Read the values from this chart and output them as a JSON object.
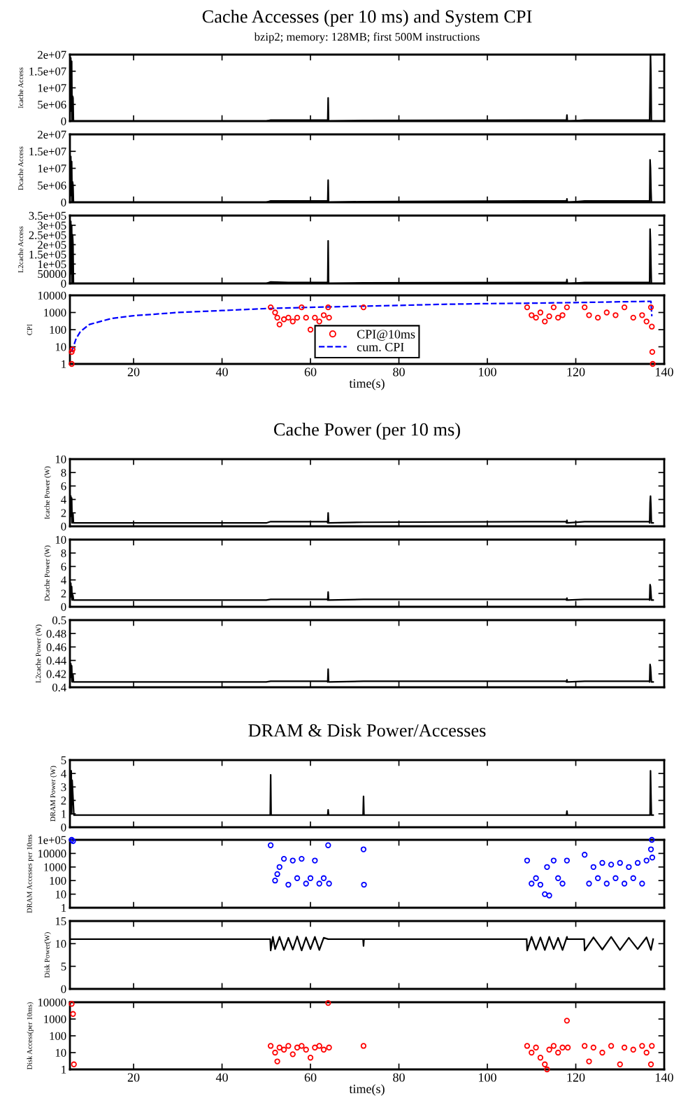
{
  "chart_data": [
    {
      "type": "line",
      "title": "Cache Accesses (per 10 ms) and System CPI",
      "subtitle": "bzip2; memory: 128MB; first 500M instructions",
      "ylabel": "Icache Access",
      "xlim": [
        5.6,
        140
      ],
      "xticks": [
        20,
        40,
        60,
        80,
        100,
        120,
        140
      ],
      "ylim": [
        0,
        20000000
      ],
      "yticks": [
        {
          "value": 0,
          "label": "0"
        },
        {
          "value": 5000000,
          "label": "5e+06"
        },
        {
          "value": 10000000,
          "label": "1e+07"
        },
        {
          "value": 15000000,
          "label": "1.5e+07"
        },
        {
          "value": 20000000,
          "label": "2e+07"
        }
      ],
      "tick_labels": "y",
      "series": [
        {
          "color": "#000000",
          "x": [
            5.6,
            5.8,
            5.9,
            6.0,
            6.1,
            6.2,
            6.3,
            6.4,
            6.5,
            6.6,
            50,
            51,
            55,
            60,
            63.8,
            63.9,
            64,
            64.1,
            64.2,
            72,
            109,
            113,
            117.8,
            117.9,
            118,
            118.1,
            118.2,
            122,
            127,
            132,
            136.6,
            136.7,
            136.8,
            136.9,
            137,
            137.1,
            137.2,
            137.5
          ],
          "values": [
            0,
            19000000,
            3000000,
            18000000,
            0,
            7500000,
            7000000,
            0,
            0,
            0,
            0,
            300000,
            300000,
            300000,
            300000,
            0,
            7000000,
            0,
            0,
            200000,
            300000,
            300000,
            300000,
            0,
            1800000,
            0,
            0,
            300000,
            300000,
            300000,
            300000,
            0,
            10000000,
            20000000,
            14000000,
            0,
            0,
            0
          ]
        }
      ]
    },
    {
      "type": "line",
      "ylabel": "Dcache Access",
      "xlim": [
        5.6,
        140
      ],
      "xticks": [
        20,
        40,
        60,
        80,
        100,
        120,
        140
      ],
      "ylim": [
        0,
        20000000
      ],
      "yticks": [
        {
          "value": 0,
          "label": "0"
        },
        {
          "value": 5000000,
          "label": "5e+06"
        },
        {
          "value": 10000000,
          "label": "1e+07"
        },
        {
          "value": 15000000,
          "label": "1.5e+07"
        },
        {
          "value": 20000000,
          "label": "2e+07"
        }
      ],
      "tick_labels": "y",
      "series": [
        {
          "color": "#000000",
          "x": [
            5.6,
            5.8,
            5.9,
            6.0,
            6.1,
            6.2,
            6.3,
            6.4,
            6.5,
            6.6,
            50,
            51,
            55,
            60,
            63.8,
            63.9,
            64,
            64.1,
            64.2,
            72,
            109,
            113,
            117.8,
            117.9,
            118,
            118.1,
            118.2,
            122,
            127,
            132,
            136.6,
            136.7,
            136.8,
            136.9,
            137,
            137.1,
            137.2,
            137.5
          ],
          "values": [
            0,
            13500000,
            2000000,
            12000000,
            0,
            6000000,
            5000000,
            0,
            0,
            0,
            0,
            400000,
            400000,
            400000,
            400000,
            0,
            6500000,
            0,
            0,
            200000,
            400000,
            400000,
            400000,
            0,
            1000000,
            0,
            0,
            400000,
            400000,
            400000,
            400000,
            0,
            12500000,
            10000000,
            4000000,
            0,
            0,
            0
          ]
        }
      ]
    },
    {
      "type": "line",
      "ylabel": "L2cache Access",
      "xlim": [
        5.6,
        140
      ],
      "xticks": [
        20,
        40,
        60,
        80,
        100,
        120,
        140
      ],
      "ylim": [
        0,
        350000
      ],
      "yticks": [
        {
          "value": 0,
          "label": "0"
        },
        50000,
        {
          "value": 100000,
          "label": "1e+05"
        },
        {
          "value": 150000,
          "label": "1.5e+05"
        },
        {
          "value": 200000,
          "label": "2e+05"
        },
        {
          "value": 250000,
          "label": "2.5e+05"
        },
        {
          "value": 300000,
          "label": "3e+05"
        },
        {
          "value": 350000,
          "label": "3.5e+05"
        }
      ],
      "tick_labels": "y",
      "series": [
        {
          "color": "#000000",
          "x": [
            5.6,
            5.8,
            5.9,
            6.0,
            6.1,
            6.2,
            6.3,
            6.4,
            6.5,
            6.6,
            50,
            51,
            55,
            60,
            63.8,
            63.9,
            64,
            64.1,
            64.2,
            72,
            109,
            113,
            117.8,
            117.9,
            118,
            118.1,
            118.2,
            122,
            127,
            132,
            136.6,
            136.7,
            136.8,
            136.9,
            137,
            137.1,
            137.2,
            137.5
          ],
          "values": [
            0,
            320000,
            50000,
            300000,
            0,
            250000,
            200000,
            0,
            0,
            0,
            0,
            8000,
            5000,
            5000,
            5000,
            0,
            220000,
            0,
            0,
            3000,
            5000,
            5000,
            5000,
            0,
            20000,
            0,
            0,
            5000,
            5000,
            5000,
            5000,
            0,
            280000,
            220000,
            100000,
            0,
            0,
            0
          ]
        }
      ]
    },
    {
      "type": "scatter",
      "ylabel": "CPI",
      "xlabel": "time(s)",
      "log": "y",
      "legend": "lower center",
      "xlim": [
        5.6,
        140
      ],
      "xticks": [
        20,
        40,
        60,
        80,
        100,
        120,
        140
      ],
      "ylim": [
        1,
        10000
      ],
      "yticks": [
        1,
        10,
        100,
        1000,
        10000
      ],
      "series": [
        {
          "type": "scatter",
          "name": "CPI@10ms",
          "marker": "circle",
          "color": "#ff0000",
          "x": [
            6,
            6,
            6.2,
            51,
            52,
            52.5,
            53,
            54,
            55,
            56,
            57,
            58,
            59,
            60,
            61,
            62,
            63,
            64,
            64.2,
            72,
            109,
            110,
            111,
            112,
            113,
            114,
            115,
            116,
            117,
            118,
            122,
            123,
            125,
            127,
            129,
            131,
            133,
            135,
            136,
            137,
            137.2,
            137.3,
            137.4
          ],
          "values": [
            1,
            5,
            7,
            2000,
            1000,
            500,
            200,
            400,
            500,
            300,
            500,
            2000,
            500,
            100,
            500,
            300,
            700,
            2000,
            500,
            2000,
            2000,
            700,
            500,
            1000,
            300,
            600,
            2000,
            500,
            700,
            2000,
            2000,
            700,
            500,
            1000,
            700,
            2000,
            500,
            700,
            300,
            2000,
            150,
            5,
            1
          ]
        },
        {
          "type": "line",
          "name": "cum. CPI",
          "marker": "none",
          "color": "#0000ff",
          "line_style": "dashed",
          "x": [
            6,
            7,
            8,
            10,
            15,
            20,
            30,
            40,
            50,
            60,
            70,
            80,
            90,
            100,
            110,
            120,
            130,
            137,
            137.2
          ],
          "values": [
            5,
            30,
            80,
            200,
            450,
            650,
            1000,
            1300,
            1700,
            2000,
            2300,
            2600,
            3000,
            3300,
            3500,
            3800,
            4200,
            4500,
            600
          ]
        }
      ]
    },
    {
      "type": "line",
      "title": "Cache Power (per 10 ms)",
      "ylabel": "Icache Power (W)",
      "xlim": [
        5.6,
        140
      ],
      "xticks": [
        20,
        40,
        60,
        80,
        100,
        120,
        140
      ],
      "ylim": [
        0,
        10
      ],
      "yticks": [
        0,
        2,
        4,
        6,
        8,
        10
      ],
      "tick_labels": "y",
      "series": [
        {
          "color": "#000000",
          "x": [
            5.6,
            5.8,
            5.9,
            6.0,
            6.1,
            6.2,
            6.3,
            6.4,
            6.5,
            6.6,
            50,
            51,
            55,
            60,
            63.8,
            63.9,
            64,
            64.1,
            64.2,
            72,
            109,
            113,
            117.8,
            117.9,
            118,
            118.1,
            118.2,
            122,
            127,
            132,
            136.6,
            136.7,
            136.8,
            136.9,
            137,
            137.1,
            137.2,
            137.5
          ],
          "values": [
            0.5,
            4.5,
            1.5,
            4.2,
            0.5,
            2,
            1.8,
            0.5,
            0.5,
            0.5,
            0.5,
            0.7,
            0.7,
            0.7,
            0.7,
            0.5,
            2,
            0.5,
            0.5,
            0.6,
            0.7,
            0.7,
            0.7,
            0.5,
            0.9,
            0.5,
            0.5,
            0.7,
            0.7,
            0.7,
            0.7,
            0.5,
            3.5,
            4.5,
            3,
            0.5,
            0.5,
            0.5
          ]
        }
      ]
    },
    {
      "type": "line",
      "ylabel": "Dcache Power (W)",
      "xlim": [
        5.6,
        140
      ],
      "xticks": [
        20,
        40,
        60,
        80,
        100,
        120,
        140
      ],
      "ylim": [
        0,
        10
      ],
      "yticks": [
        0,
        2,
        4,
        6,
        8,
        10
      ],
      "tick_labels": "y",
      "series": [
        {
          "color": "#000000",
          "x": [
            5.6,
            5.8,
            5.9,
            6.0,
            6.1,
            6.2,
            6.3,
            6.4,
            6.5,
            6.6,
            50,
            51,
            55,
            60,
            63.8,
            63.9,
            64,
            64.1,
            64.2,
            72,
            109,
            113,
            117.8,
            117.9,
            118,
            118.1,
            118.2,
            122,
            127,
            132,
            136.6,
            136.7,
            136.8,
            136.9,
            137,
            137.1,
            137.2,
            137.5
          ],
          "values": [
            1,
            3.5,
            1.5,
            3,
            1,
            1.8,
            1.6,
            1,
            1,
            1,
            1,
            1.1,
            1.1,
            1.1,
            1.1,
            1,
            2.2,
            1,
            1,
            1.1,
            1.1,
            1.1,
            1.1,
            1,
            1.3,
            1,
            1,
            1.1,
            1.1,
            1.1,
            1.1,
            1,
            3.3,
            3,
            2,
            1,
            1,
            1
          ]
        }
      ]
    },
    {
      "type": "line",
      "ylabel": "L2cache Power (W)",
      "xlim": [
        5.6,
        140
      ],
      "xticks": [
        20,
        40,
        60,
        80,
        100,
        120,
        140
      ],
      "ylim": [
        0.4,
        0.5
      ],
      "yticks": [
        0.4,
        0.42,
        0.44,
        0.46,
        0.48,
        0.5
      ],
      "tick_labels": "y",
      "series": [
        {
          "color": "#000000",
          "x": [
            5.6,
            5.8,
            5.9,
            6.0,
            6.1,
            6.2,
            6.3,
            6.4,
            6.5,
            6.6,
            50,
            51,
            55,
            60,
            63.8,
            63.9,
            64,
            64.1,
            64.2,
            72,
            109,
            113,
            117.8,
            117.9,
            118,
            118.1,
            118.2,
            122,
            127,
            132,
            136.6,
            136.7,
            136.8,
            136.9,
            137,
            137.1,
            137.2,
            137.5
          ],
          "values": [
            0.408,
            0.435,
            0.415,
            0.432,
            0.408,
            0.42,
            0.418,
            0.408,
            0.408,
            0.408,
            0.408,
            0.409,
            0.409,
            0.409,
            0.409,
            0.408,
            0.427,
            0.408,
            0.408,
            0.409,
            0.409,
            0.409,
            0.409,
            0.408,
            0.411,
            0.408,
            0.408,
            0.409,
            0.409,
            0.409,
            0.409,
            0.408,
            0.434,
            0.43,
            0.42,
            0.408,
            0.408,
            0.408
          ]
        }
      ]
    },
    {
      "type": "line",
      "title": "DRAM & Disk Power/Accesses",
      "ylabel": "DRAM Power (W)",
      "xlim": [
        5.6,
        140
      ],
      "xticks": [
        20,
        40,
        60,
        80,
        100,
        120,
        140
      ],
      "ylim": [
        0,
        5
      ],
      "yticks": [
        0,
        1,
        2,
        3,
        4,
        5
      ],
      "tick_labels": "y",
      "series": [
        {
          "color": "#000000",
          "x": [
            5.6,
            5.9,
            6.0,
            6.1,
            6.5,
            50.9,
            51,
            51.1,
            60,
            63.9,
            64,
            64.1,
            71.9,
            72,
            72.1,
            117.9,
            118,
            118.1,
            136.8,
            136.9,
            137,
            137.1,
            137.5
          ],
          "values": [
            0.9,
            4.2,
            1,
            3.5,
            0.9,
            0.9,
            3.9,
            0.9,
            0.9,
            0.9,
            1.3,
            0.9,
            0.9,
            2.3,
            0.9,
            0.9,
            1.2,
            0.9,
            0.9,
            4.2,
            2.5,
            0.9,
            0.9
          ]
        }
      ]
    },
    {
      "type": "scatter",
      "ylabel": "DRAM Accesses per 10ms",
      "log": "y",
      "marker": "circle",
      "xlim": [
        5.6,
        140
      ],
      "xticks": [
        20,
        40,
        60,
        80,
        100,
        120,
        140
      ],
      "ylim": [
        1,
        100000
      ],
      "yticks": [
        1,
        10,
        100,
        1000,
        10000,
        {
          "value": 100000,
          "label": "1e+05"
        }
      ],
      "tick_labels": "y",
      "series": [
        {
          "color": "#0000ff",
          "x": [
            6,
            6.3,
            51,
            52,
            52.5,
            53,
            54,
            55,
            56,
            57,
            58,
            59,
            60,
            61,
            62,
            63,
            64,
            64.2,
            72,
            72.1,
            109,
            110,
            111,
            112,
            113,
            113.5,
            114,
            115,
            116,
            117,
            118,
            122,
            123,
            124,
            125,
            126,
            127,
            128,
            129,
            130,
            131,
            132,
            133,
            134,
            135,
            136,
            137,
            137.2,
            137.3
          ],
          "values": [
            100000,
            80000,
            40000,
            100,
            300,
            1000,
            4000,
            50,
            3000,
            150,
            4000,
            60,
            150,
            3000,
            60,
            150,
            40000,
            60,
            20000,
            50,
            3000,
            60,
            150,
            50,
            10,
            1000,
            8,
            3000,
            150,
            60,
            3000,
            8000,
            60,
            1000,
            150,
            2000,
            60,
            1500,
            150,
            2000,
            60,
            1000,
            150,
            2000,
            60,
            3000,
            20000,
            100000,
            5000
          ]
        }
      ]
    },
    {
      "type": "line",
      "ylabel": "Disk Power(W)",
      "xlim": [
        5.6,
        140
      ],
      "xticks": [
        20,
        40,
        60,
        80,
        100,
        120,
        140
      ],
      "ylim": [
        0,
        15
      ],
      "yticks": [
        0,
        5,
        10,
        15
      ],
      "tick_labels": "y",
      "series": [
        {
          "color": "#000000",
          "x": [
            5.6,
            50.9,
            51,
            51.5,
            52,
            53,
            54,
            55,
            56,
            57,
            58,
            59,
            60,
            61,
            62,
            63,
            64,
            64.1,
            71.9,
            72,
            72.1,
            108.9,
            109,
            110,
            111,
            112,
            113,
            114,
            115,
            116,
            117,
            118,
            118.1,
            121.9,
            122,
            124,
            126,
            128,
            130,
            132,
            134,
            136,
            137,
            137.5
          ],
          "values": [
            11,
            11,
            8.5,
            11.5,
            8.8,
            11.5,
            8.6,
            11.3,
            8.7,
            11.6,
            8.5,
            11.4,
            8.8,
            11.5,
            8.6,
            11.3,
            11,
            11,
            11,
            9.5,
            11,
            11,
            8.5,
            11.5,
            8.7,
            11.4,
            8.6,
            11.5,
            8.8,
            11.3,
            8.6,
            11.5,
            11,
            11,
            8.5,
            11.4,
            8.7,
            11.5,
            8.6,
            11.3,
            8.8,
            11.4,
            8.6,
            11
          ]
        }
      ]
    },
    {
      "type": "scatter",
      "ylabel": "Disk Access(per 10ms)",
      "xlabel": "time(s)",
      "log": "y",
      "marker": "circle",
      "xlim": [
        5.6,
        140
      ],
      "xticks": [
        20,
        40,
        60,
        80,
        100,
        120,
        140
      ],
      "ylim": [
        1,
        10000
      ],
      "yticks": [
        1,
        10,
        100,
        1000,
        10000
      ],
      "series": [
        {
          "color": "#ff0000",
          "x": [
            6,
            6.3,
            6.5,
            51,
            52,
            52.5,
            53,
            54,
            55,
            56,
            57,
            58,
            59,
            60,
            61,
            62,
            63,
            64,
            64.2,
            72,
            109,
            110,
            111,
            112,
            113,
            113.5,
            114,
            115,
            116,
            117,
            118,
            118.2,
            122,
            123,
            124,
            126,
            128,
            130,
            131,
            133,
            135,
            136,
            137,
            137.2
          ],
          "values": [
            8000,
            2000,
            2,
            25,
            10,
            3,
            20,
            15,
            25,
            8,
            20,
            25,
            15,
            5,
            20,
            25,
            15,
            9000,
            20,
            25,
            25,
            10,
            20,
            5,
            2,
            1,
            15,
            25,
            10,
            20,
            800,
            20,
            25,
            3,
            20,
            10,
            25,
            2,
            20,
            15,
            25,
            10,
            2,
            25
          ]
        }
      ]
    }
  ]
}
